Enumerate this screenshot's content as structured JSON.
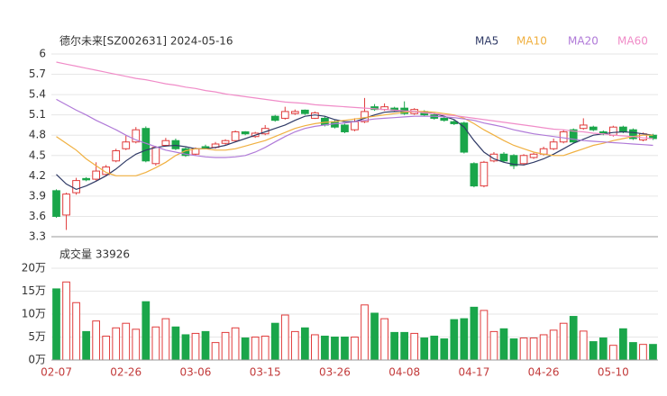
{
  "chart_data": [
    {
      "type": "candlestick",
      "title": "德尔未来[SZ002631] 2024-05-16",
      "up_color": "#e03b3b",
      "down_color": "#1aa64a",
      "grid": true,
      "legend": "top-right",
      "categories": [
        "02-07",
        null,
        null,
        null,
        null,
        null,
        null,
        "02-26",
        null,
        null,
        null,
        null,
        null,
        null,
        "03-06",
        null,
        null,
        null,
        null,
        null,
        null,
        "03-15",
        null,
        null,
        null,
        null,
        null,
        null,
        "03-26",
        null,
        null,
        null,
        null,
        null,
        null,
        "04-08",
        null,
        null,
        null,
        null,
        null,
        null,
        "04-17",
        null,
        null,
        null,
        null,
        null,
        null,
        "04-26",
        null,
        null,
        null,
        null,
        null,
        null,
        "05-10",
        null,
        null,
        null,
        null
      ],
      "open": [
        3.98,
        3.62,
        3.95,
        4.16,
        4.15,
        4.22,
        4.42,
        4.6,
        4.7,
        4.9,
        4.38,
        4.65,
        4.72,
        4.6,
        4.52,
        4.63,
        4.62,
        4.68,
        4.72,
        4.85,
        4.78,
        4.82,
        5.08,
        5.05,
        5.12,
        5.17,
        5.05,
        5.05,
        5.0,
        4.95,
        4.88,
        5.0,
        5.22,
        5.18,
        5.2,
        5.2,
        5.12,
        5.15,
        5.1,
        5.05,
        5.0,
        4.98,
        4.38,
        4.05,
        4.42,
        4.52,
        4.5,
        4.38,
        4.47,
        4.52,
        4.6,
        4.7,
        4.88,
        4.9,
        4.92,
        4.85,
        4.8,
        4.92,
        4.88,
        4.73,
        4.8
      ],
      "close": [
        3.6,
        3.93,
        4.13,
        4.14,
        4.27,
        4.33,
        4.57,
        4.7,
        4.88,
        4.42,
        4.62,
        4.72,
        4.6,
        4.5,
        4.6,
        4.61,
        4.67,
        4.72,
        4.85,
        4.82,
        4.83,
        4.9,
        5.02,
        5.15,
        5.15,
        5.12,
        5.13,
        4.95,
        4.92,
        4.85,
        5.0,
        5.15,
        5.18,
        5.22,
        5.17,
        5.12,
        5.18,
        5.1,
        5.05,
        5.02,
        4.97,
        4.55,
        4.05,
        4.4,
        4.52,
        4.42,
        4.35,
        4.5,
        4.52,
        4.6,
        4.7,
        4.85,
        4.7,
        4.95,
        4.88,
        4.82,
        4.92,
        4.85,
        4.75,
        4.82,
        4.75
      ],
      "high": [
        4.0,
        3.95,
        4.17,
        4.18,
        4.4,
        4.36,
        4.6,
        4.8,
        4.92,
        4.93,
        4.64,
        4.76,
        4.75,
        4.62,
        4.62,
        4.66,
        4.7,
        4.74,
        4.87,
        4.86,
        4.85,
        4.95,
        5.1,
        5.22,
        5.18,
        5.18,
        5.15,
        5.08,
        5.02,
        4.97,
        5.05,
        5.35,
        5.26,
        5.27,
        5.22,
        5.3,
        5.2,
        5.17,
        5.12,
        5.07,
        5.02,
        5.0,
        4.4,
        4.42,
        4.55,
        4.55,
        4.52,
        4.52,
        4.54,
        4.63,
        4.75,
        4.88,
        4.9,
        5.05,
        4.94,
        4.87,
        4.94,
        4.94,
        4.9,
        4.84,
        4.82
      ],
      "low": [
        3.58,
        3.4,
        3.92,
        4.12,
        4.13,
        4.2,
        4.4,
        4.58,
        4.68,
        4.4,
        4.35,
        4.63,
        4.58,
        4.48,
        4.5,
        4.59,
        4.6,
        4.66,
        4.7,
        4.8,
        4.76,
        4.8,
        5.0,
        5.03,
        5.1,
        5.1,
        5.04,
        4.93,
        4.9,
        4.83,
        4.86,
        4.98,
        5.16,
        5.16,
        5.15,
        5.1,
        5.1,
        5.08,
        5.03,
        5.0,
        4.95,
        4.53,
        4.03,
        4.03,
        4.4,
        4.4,
        4.3,
        4.36,
        4.45,
        4.5,
        4.58,
        4.68,
        4.68,
        4.88,
        4.86,
        4.8,
        4.78,
        4.83,
        4.73,
        4.71,
        4.73
      ],
      "series": [
        {
          "name": "MA5",
          "color": "#2f3a66",
          "values": [
            4.22,
            4.08,
            4.0,
            4.05,
            4.12,
            4.2,
            4.3,
            4.42,
            4.52,
            4.58,
            4.62,
            4.64,
            4.65,
            4.63,
            4.6,
            4.6,
            4.62,
            4.65,
            4.7,
            4.75,
            4.8,
            4.85,
            4.9,
            4.95,
            5.02,
            5.08,
            5.1,
            5.08,
            5.03,
            5.0,
            5.0,
            5.05,
            5.1,
            5.14,
            5.15,
            5.16,
            5.15,
            5.14,
            5.12,
            5.08,
            5.03,
            4.92,
            4.72,
            4.55,
            4.45,
            4.4,
            4.37,
            4.36,
            4.4,
            4.45,
            4.52,
            4.6,
            4.68,
            4.74,
            4.8,
            4.82,
            4.84,
            4.85,
            4.84,
            4.82,
            4.8
          ]
        },
        {
          "name": "MA10",
          "color": "#f0b040",
          "values": [
            4.78,
            4.68,
            4.58,
            4.45,
            4.35,
            4.25,
            4.2,
            4.2,
            4.2,
            4.25,
            4.32,
            4.4,
            4.5,
            4.57,
            4.6,
            4.6,
            4.58,
            4.58,
            4.6,
            4.64,
            4.68,
            4.72,
            4.78,
            4.84,
            4.9,
            4.94,
            4.97,
            4.99,
            5.0,
            5.02,
            5.04,
            5.06,
            5.08,
            5.1,
            5.12,
            5.14,
            5.15,
            5.15,
            5.14,
            5.12,
            5.1,
            5.05,
            4.97,
            4.88,
            4.8,
            4.72,
            4.65,
            4.6,
            4.55,
            4.52,
            4.5,
            4.5,
            4.55,
            4.6,
            4.65,
            4.68,
            4.72,
            4.75,
            4.78,
            4.8,
            4.8
          ]
        },
        {
          "name": "MA20",
          "color": "#b07ad8",
          "values": [
            5.33,
            5.25,
            5.17,
            5.1,
            5.02,
            4.95,
            4.88,
            4.8,
            4.73,
            4.68,
            4.63,
            4.58,
            4.55,
            4.52,
            4.5,
            4.48,
            4.47,
            4.47,
            4.48,
            4.5,
            4.55,
            4.62,
            4.7,
            4.78,
            4.85,
            4.9,
            4.93,
            4.95,
            4.97,
            4.98,
            5.0,
            5.02,
            5.04,
            5.05,
            5.06,
            5.07,
            5.08,
            5.08,
            5.08,
            5.07,
            5.06,
            5.04,
            5.02,
            4.98,
            4.95,
            4.92,
            4.88,
            4.85,
            4.82,
            4.8,
            4.78,
            4.76,
            4.74,
            4.72,
            4.71,
            4.7,
            4.69,
            4.68,
            4.67,
            4.66,
            4.65
          ]
        },
        {
          "name": "MA60",
          "color": "#f08cc8",
          "values": [
            5.88,
            5.85,
            5.82,
            5.79,
            5.76,
            5.73,
            5.7,
            5.67,
            5.64,
            5.62,
            5.59,
            5.56,
            5.54,
            5.51,
            5.49,
            5.46,
            5.44,
            5.41,
            5.39,
            5.37,
            5.35,
            5.33,
            5.31,
            5.29,
            5.28,
            5.27,
            5.25,
            5.24,
            5.23,
            5.22,
            5.21,
            5.2,
            5.19,
            5.18,
            5.17,
            5.16,
            5.15,
            5.13,
            5.12,
            5.1,
            5.09,
            5.07,
            5.05,
            5.03,
            5.01,
            4.99,
            4.97,
            4.95,
            4.93,
            4.91,
            4.89,
            4.88,
            4.86,
            4.85,
            4.83,
            4.82,
            4.8,
            4.79,
            4.78,
            4.76,
            4.75
          ]
        }
      ],
      "ylim": [
        3.3,
        6
      ],
      "yticks": [
        3.3,
        3.6,
        3.9,
        4.2,
        4.5,
        4.8,
        5.1,
        5.4,
        5.7,
        6
      ]
    },
    {
      "type": "bar",
      "title": "成交量 33926",
      "grid": true,
      "values": [
        15.5,
        17,
        12.5,
        6.2,
        8.5,
        5.2,
        7,
        8,
        6.7,
        12.7,
        7.2,
        9,
        7.2,
        5.5,
        5.8,
        6.2,
        3.8,
        6,
        7,
        4.8,
        5,
        5.2,
        8,
        9.8,
        6.2,
        7,
        5.5,
        5.2,
        5,
        5,
        5,
        12,
        10.2,
        9,
        6,
        6,
        5.8,
        4.8,
        5.2,
        4.6,
        8.8,
        9,
        11.5,
        10.8,
        6.2,
        6.8,
        4.6,
        4.8,
        4.8,
        5.5,
        6.5,
        8,
        9.5,
        6.3,
        4,
        4.8,
        3.2,
        6.8,
        3.8,
        3.4,
        3.3926
      ],
      "ylim": [
        0,
        20
      ],
      "yticks": [
        {
          "value": 0,
          "label": "0万"
        },
        {
          "value": 5,
          "label": "5万"
        },
        {
          "value": 10,
          "label": "10万"
        },
        {
          "value": 15,
          "label": "15万"
        },
        {
          "value": 20,
          "label": "20万"
        }
      ]
    }
  ]
}
